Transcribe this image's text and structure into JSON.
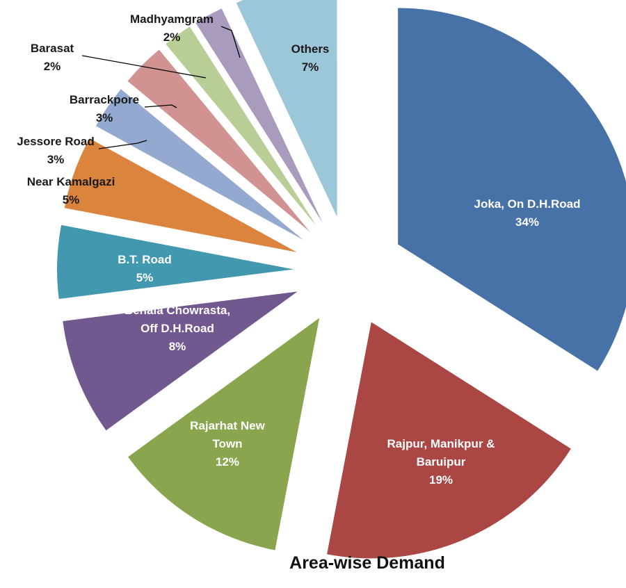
{
  "chart_data": {
    "type": "pie",
    "title": "Area-wise Demand",
    "exploded": true,
    "slices": [
      {
        "label_lines": [
          "Joka, On D.H.Road"
        ],
        "value_label": "34%",
        "value": 34,
        "color": "#4672A8",
        "label_style": "inside"
      },
      {
        "label_lines": [
          "Rajpur, Manikpur &",
          "Baruipur"
        ],
        "value_label": "19%",
        "value": 19,
        "color": "#AA4644",
        "label_style": "inside"
      },
      {
        "label_lines": [
          "Rajarhat New",
          "Town"
        ],
        "value_label": "12%",
        "value": 12,
        "color": "#89A54E",
        "label_style": "inside"
      },
      {
        "label_lines": [
          "Behala Chowrasta,",
          "Off D.H.Road"
        ],
        "value_label": "8%",
        "value": 8,
        "color": "#71588F",
        "label_style": "inside"
      },
      {
        "label_lines": [
          "B.T. Road"
        ],
        "value_label": "5%",
        "value": 5,
        "color": "#4198AF",
        "label_style": "inside"
      },
      {
        "label_lines": [
          "Near Kamalgazi"
        ],
        "value_label": "5%",
        "value": 5,
        "color": "#DB843D",
        "label_style": "outside"
      },
      {
        "label_lines": [
          "Jessore Road"
        ],
        "value_label": "3%",
        "value": 3,
        "color": "#93A9CF",
        "label_style": "outside-leader"
      },
      {
        "label_lines": [
          "Barrackpore"
        ],
        "value_label": "3%",
        "value": 3,
        "color": "#D19392",
        "label_style": "outside-leader"
      },
      {
        "label_lines": [
          "Barasat"
        ],
        "value_label": "2%",
        "value": 2,
        "color": "#B9CD96",
        "label_style": "outside-leader"
      },
      {
        "label_lines": [
          "Madhyamgram"
        ],
        "value_label": "2%",
        "value": 2,
        "color": "#A99BBD",
        "label_style": "outside-leader"
      },
      {
        "label_lines": [
          "Others"
        ],
        "value_label": "7%",
        "value": 7,
        "color": "#9BC7D8",
        "label_style": "inside-dark"
      }
    ]
  }
}
